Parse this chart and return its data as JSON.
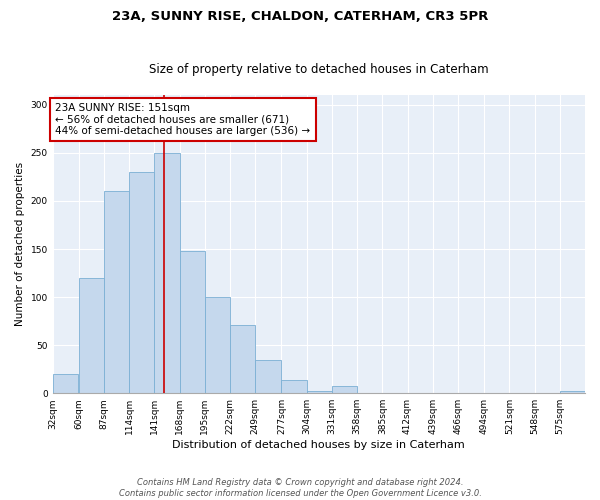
{
  "title": "23A, SUNNY RISE, CHALDON, CATERHAM, CR3 5PR",
  "subtitle": "Size of property relative to detached houses in Caterham",
  "xlabel": "Distribution of detached houses by size in Caterham",
  "ylabel": "Number of detached properties",
  "bin_labels": [
    "32sqm",
    "60sqm",
    "87sqm",
    "114sqm",
    "141sqm",
    "168sqm",
    "195sqm",
    "222sqm",
    "249sqm",
    "277sqm",
    "304sqm",
    "331sqm",
    "358sqm",
    "385sqm",
    "412sqm",
    "439sqm",
    "466sqm",
    "494sqm",
    "521sqm",
    "548sqm",
    "575sqm"
  ],
  "bin_edges": [
    32,
    60,
    87,
    114,
    141,
    168,
    195,
    222,
    249,
    277,
    304,
    331,
    358,
    385,
    412,
    439,
    466,
    494,
    521,
    548,
    575
  ],
  "bar_heights": [
    20,
    120,
    210,
    230,
    250,
    148,
    100,
    71,
    35,
    14,
    2,
    8,
    0,
    0,
    0,
    0,
    0,
    0,
    0,
    0,
    2
  ],
  "bar_color": "#c5d8ed",
  "bar_edge_color": "#7bafd4",
  "vline_x": 151,
  "vline_color": "#cc0000",
  "annotation_line1": "23A SUNNY RISE: 151sqm",
  "annotation_line2": "← 56% of detached houses are smaller (671)",
  "annotation_line3": "44% of semi-detached houses are larger (536) →",
  "annotation_box_color": "#ffffff",
  "annotation_box_edge_color": "#cc0000",
  "ylim": [
    0,
    310
  ],
  "yticks": [
    0,
    50,
    100,
    150,
    200,
    250,
    300
  ],
  "background_color": "#e8eff8",
  "grid_color": "#ffffff",
  "footnote_line1": "Contains HM Land Registry data © Crown copyright and database right 2024.",
  "footnote_line2": "Contains public sector information licensed under the Open Government Licence v3.0.",
  "title_fontsize": 9.5,
  "subtitle_fontsize": 8.5,
  "xlabel_fontsize": 8,
  "ylabel_fontsize": 7.5,
  "tick_fontsize": 6.5,
  "annotation_fontsize": 7.5,
  "footnote_fontsize": 6
}
